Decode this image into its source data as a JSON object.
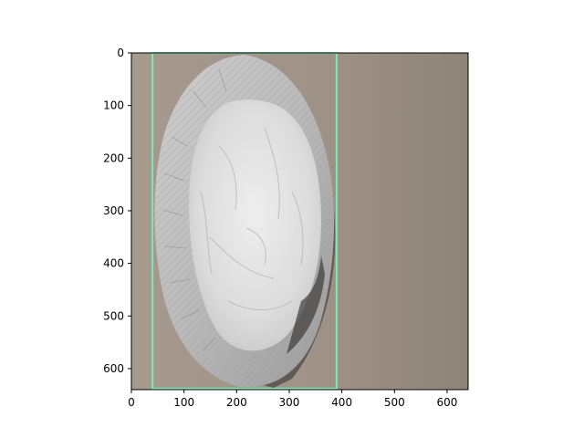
{
  "axes": {
    "x_ticks": [
      "0",
      "100",
      "200",
      "300",
      "400",
      "500",
      "600"
    ],
    "y_ticks": [
      "0",
      "100",
      "200",
      "300",
      "400",
      "500",
      "600"
    ],
    "xlim": [
      0,
      640
    ],
    "ylim": [
      640,
      0
    ]
  },
  "image": {
    "subject": "crumpled aluminum foil pie tin on a taupe surface",
    "colors": {
      "background": "#a69a8e",
      "background_dark": "#8f8479",
      "foil_outer": "#b9b9b9",
      "foil_inner": "#dcdcdc",
      "foil_highlight": "#eeeeee",
      "foil_shadow": "#6e6a66"
    }
  },
  "annotation": {
    "type": "bounding-box",
    "x_min": 40,
    "x_max": 390,
    "y_min": 0,
    "y_max": 638,
    "color": "#7ee8b4"
  }
}
